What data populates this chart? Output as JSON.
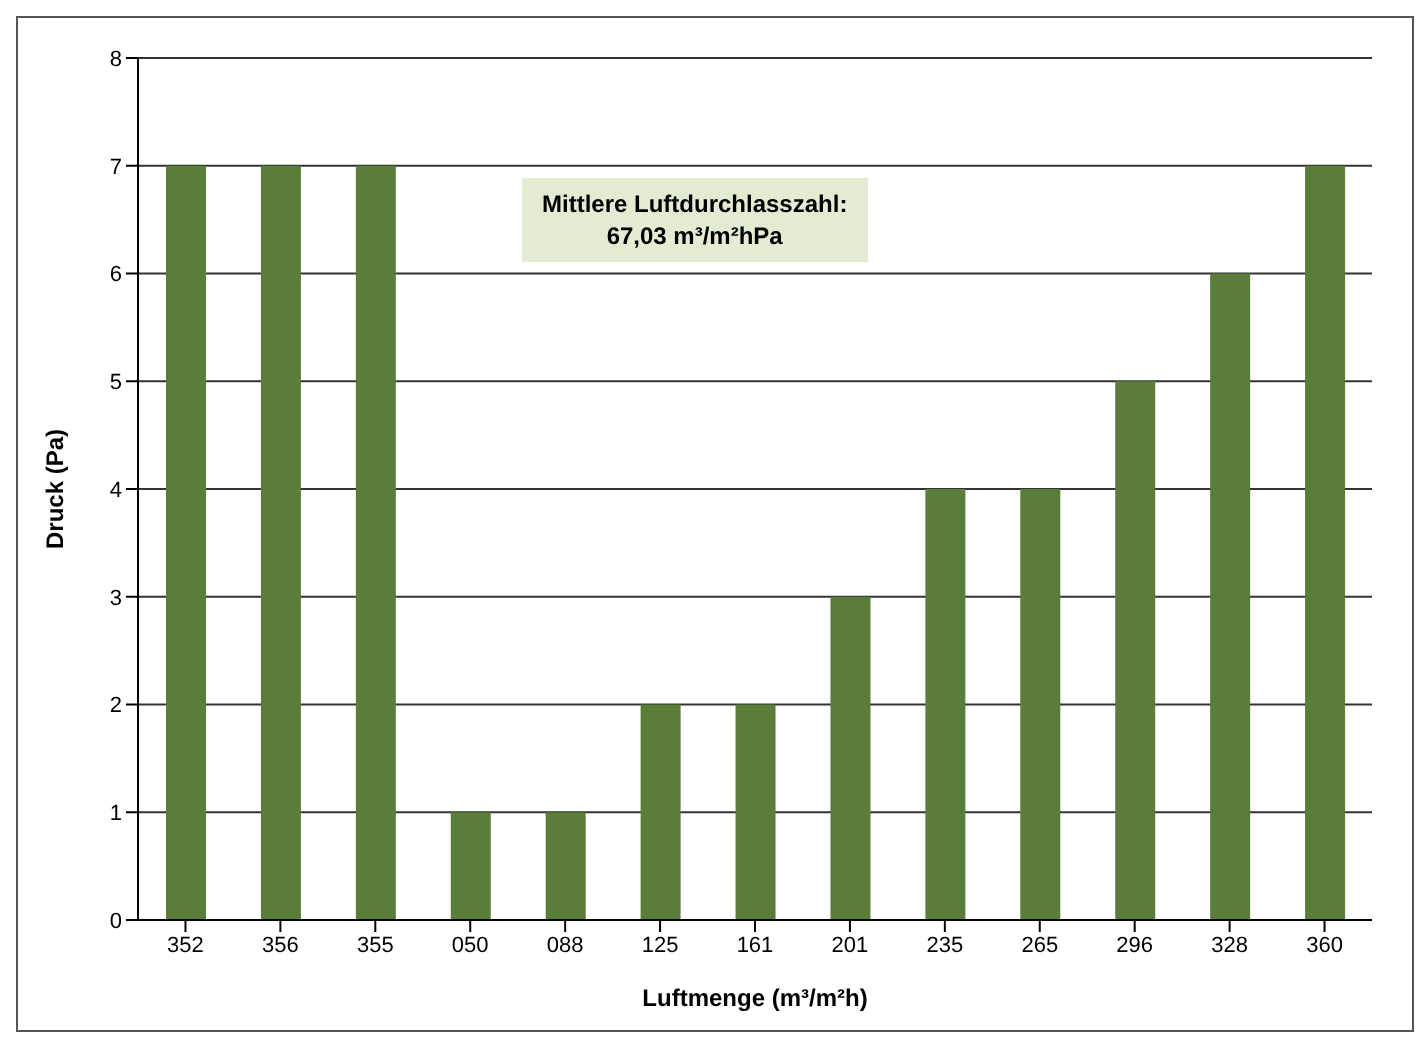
{
  "chart_data": {
    "type": "bar",
    "xlabel": "Luftmenge (m³/m²h)",
    "ylabel": "Druck (Pa)",
    "categories": [
      "352",
      "356",
      "355",
      "050",
      "088",
      "125",
      "161",
      "201",
      "235",
      "265",
      "296",
      "328",
      "360"
    ],
    "values": [
      7,
      7,
      7,
      1,
      1,
      2,
      2,
      3,
      4,
      4,
      5,
      6,
      7
    ],
    "color": "#5a7d3a",
    "ylim": [
      0,
      8
    ],
    "yticks": [
      0,
      1,
      2,
      3,
      4,
      5,
      6,
      7,
      8
    ],
    "grid": "y",
    "annotations": [
      "Mittlere Luftdurchlasszahl:\n67,03 m³/m²hPa"
    ]
  }
}
